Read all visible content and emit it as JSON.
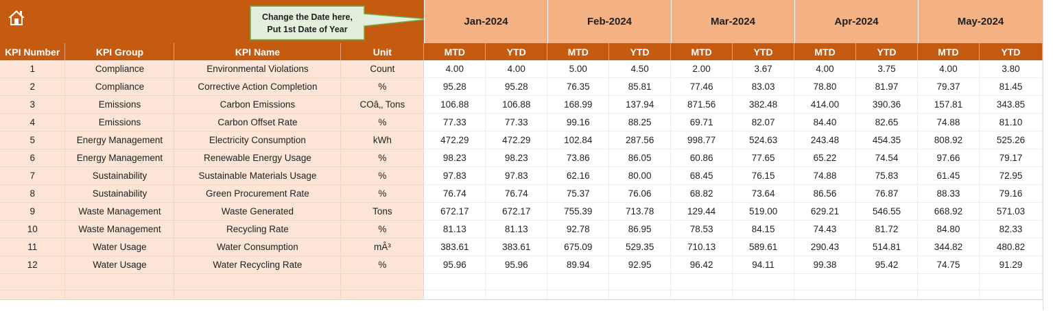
{
  "callout": {
    "line1": "Change the Date here,",
    "line2": "Put 1st Date of Year"
  },
  "months": [
    "Jan-2024",
    "Feb-2024",
    "Mar-2024",
    "Apr-2024",
    "May-2024"
  ],
  "headers": [
    "KPI Number",
    "KPI Group",
    "KPI Name",
    "Unit"
  ],
  "sub_headers": [
    "MTD",
    "YTD"
  ],
  "colors": {
    "header_bg": "#c55a11",
    "month_bg": "#f4b183",
    "left_cells_bg": "#fce4d6",
    "callout_bg": "#e2efda",
    "callout_border": "#70ad47"
  },
  "rows": [
    {
      "num": "1",
      "group": "Compliance",
      "name": "Environmental Violations",
      "unit": "Count",
      "values": [
        "4.00",
        "4.00",
        "5.00",
        "4.50",
        "2.00",
        "3.67",
        "4.00",
        "3.75",
        "4.00",
        "3.80"
      ]
    },
    {
      "num": "2",
      "group": "Compliance",
      "name": "Corrective Action Completion",
      "unit": "%",
      "values": [
        "95.28",
        "95.28",
        "76.35",
        "85.81",
        "77.46",
        "83.03",
        "78.80",
        "81.97",
        "79.37",
        "81.45"
      ]
    },
    {
      "num": "3",
      "group": "Emissions",
      "name": "Carbon Emissions",
      "unit": "COâ‚‚ Tons",
      "values": [
        "106.88",
        "106.88",
        "168.99",
        "137.94",
        "871.56",
        "382.48",
        "414.00",
        "390.36",
        "157.81",
        "343.85"
      ]
    },
    {
      "num": "4",
      "group": "Emissions",
      "name": "Carbon Offset Rate",
      "unit": "%",
      "values": [
        "77.33",
        "77.33",
        "99.16",
        "88.25",
        "69.71",
        "82.07",
        "84.40",
        "82.65",
        "74.88",
        "81.10"
      ]
    },
    {
      "num": "5",
      "group": "Energy Management",
      "name": "Electricity Consumption",
      "unit": "kWh",
      "values": [
        "472.29",
        "472.29",
        "102.84",
        "287.56",
        "998.77",
        "524.63",
        "243.48",
        "454.35",
        "808.92",
        "525.26"
      ]
    },
    {
      "num": "6",
      "group": "Energy Management",
      "name": "Renewable Energy Usage",
      "unit": "%",
      "values": [
        "98.23",
        "98.23",
        "73.86",
        "86.05",
        "60.86",
        "77.65",
        "65.22",
        "74.54",
        "97.66",
        "79.17"
      ]
    },
    {
      "num": "7",
      "group": "Sustainability",
      "name": "Sustainable Materials Usage",
      "unit": "%",
      "values": [
        "97.83",
        "97.83",
        "62.16",
        "80.00",
        "68.45",
        "76.15",
        "74.88",
        "75.83",
        "61.45",
        "72.95"
      ]
    },
    {
      "num": "8",
      "group": "Sustainability",
      "name": "Green Procurement Rate",
      "unit": "%",
      "values": [
        "76.74",
        "76.74",
        "75.37",
        "76.06",
        "68.82",
        "73.64",
        "86.56",
        "76.87",
        "88.33",
        "79.16"
      ]
    },
    {
      "num": "9",
      "group": "Waste Management",
      "name": "Waste Generated",
      "unit": "Tons",
      "values": [
        "672.17",
        "672.17",
        "755.39",
        "713.78",
        "129.44",
        "519.00",
        "629.21",
        "546.55",
        "668.92",
        "571.03"
      ]
    },
    {
      "num": "10",
      "group": "Waste Management",
      "name": "Recycling Rate",
      "unit": "%",
      "values": [
        "81.13",
        "81.13",
        "92.78",
        "86.95",
        "78.53",
        "84.15",
        "74.43",
        "81.72",
        "84.80",
        "82.33"
      ]
    },
    {
      "num": "11",
      "group": "Water Usage",
      "name": "Water Consumption",
      "unit": "mÂ³",
      "values": [
        "383.61",
        "383.61",
        "675.09",
        "529.35",
        "710.13",
        "589.61",
        "290.43",
        "514.81",
        "344.82",
        "480.82"
      ]
    },
    {
      "num": "12",
      "group": "Water Usage",
      "name": "Water Recycling Rate",
      "unit": "%",
      "values": [
        "95.96",
        "95.96",
        "89.94",
        "92.95",
        "96.42",
        "94.11",
        "99.38",
        "95.42",
        "74.75",
        "91.29"
      ]
    }
  ]
}
